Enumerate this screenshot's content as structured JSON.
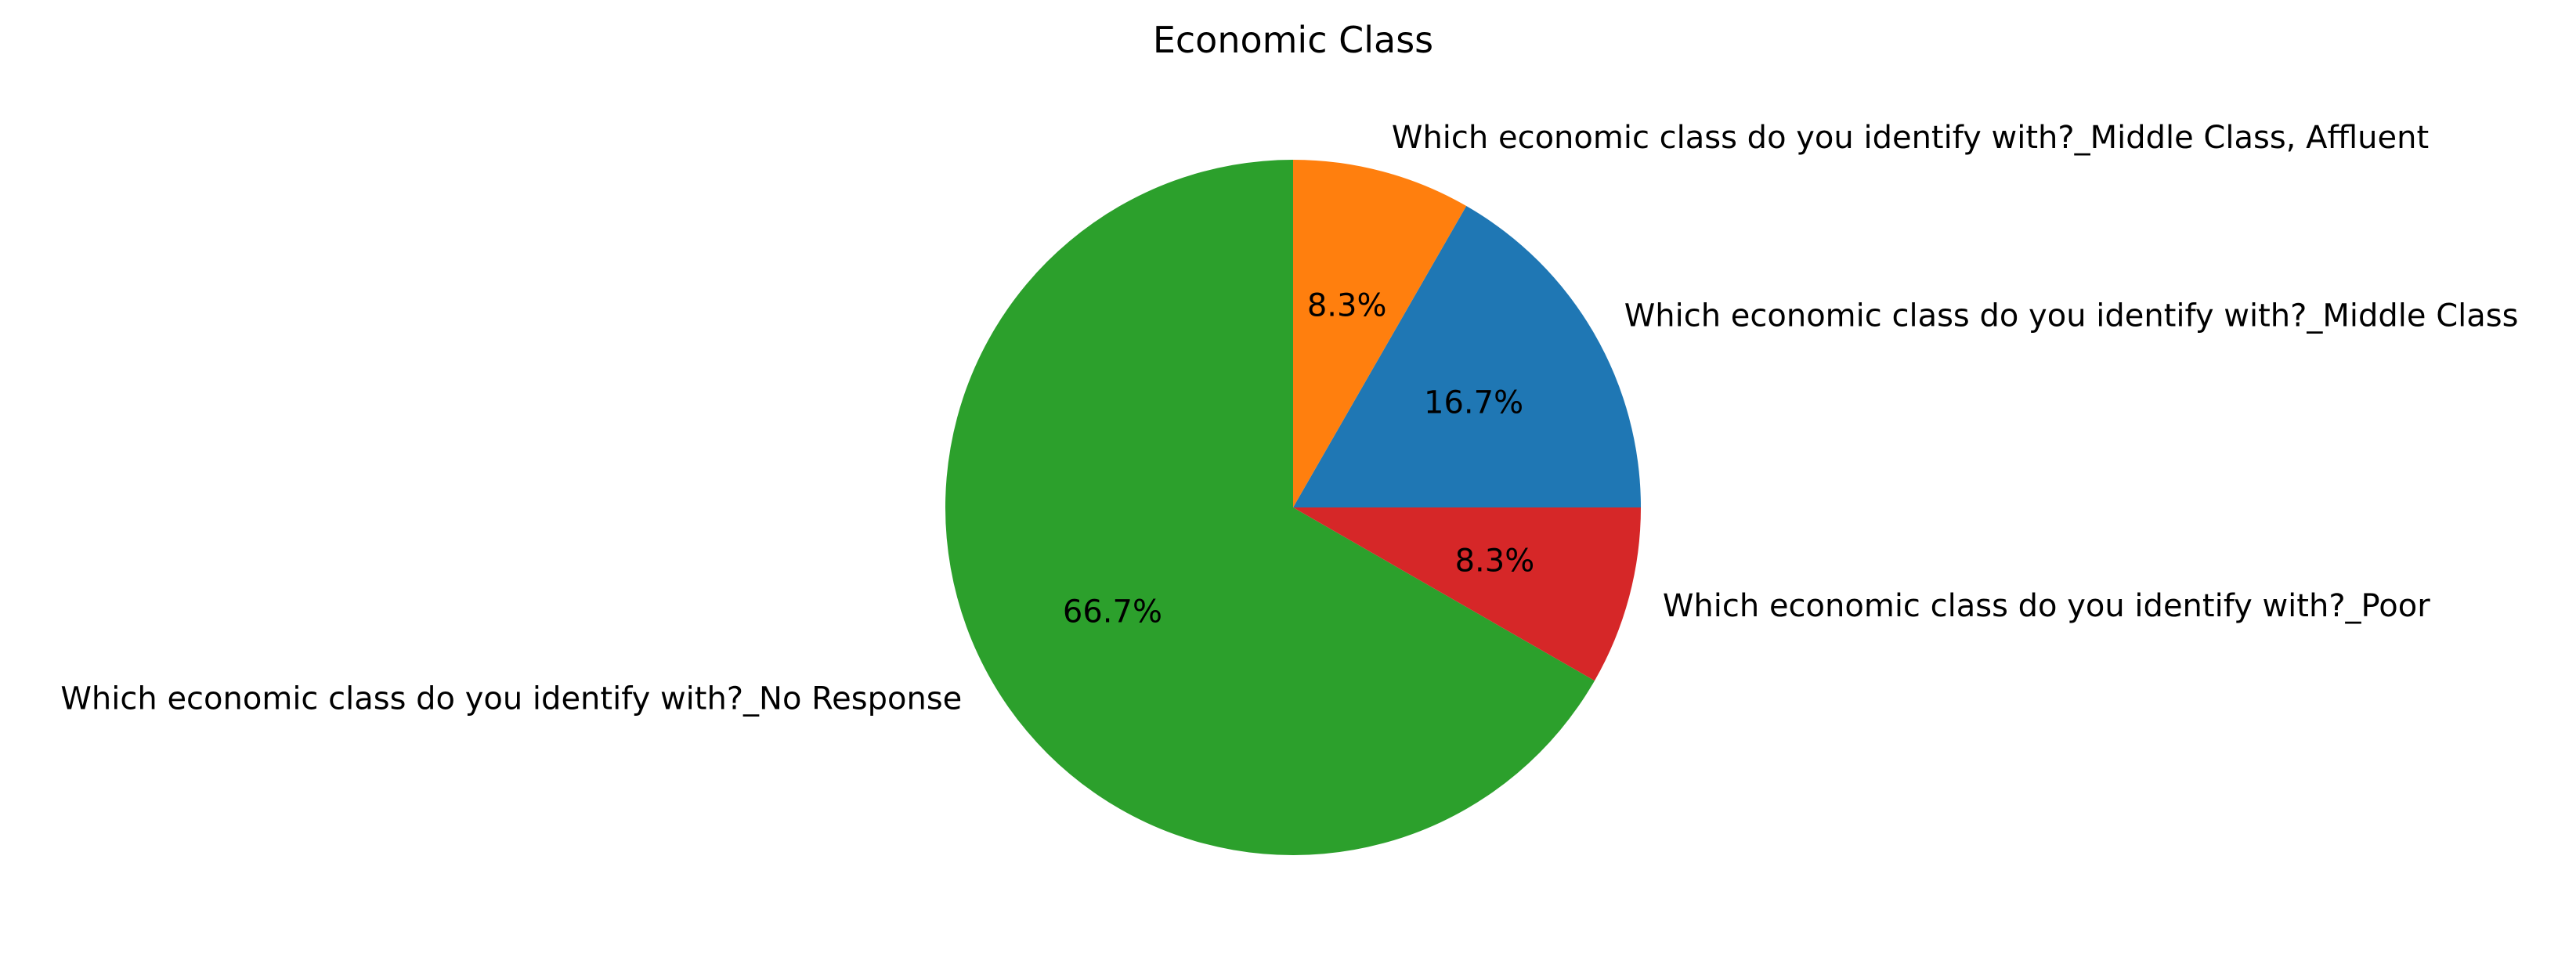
{
  "chart_data": {
    "type": "pie",
    "title": "Economic Class",
    "start_angle_deg": 0,
    "direction": "counterclockwise",
    "slices": [
      {
        "label": "Which economic class do you identify with?_Middle Class",
        "value": 16.7,
        "pct_label": "16.7%",
        "color": "#1f77b4"
      },
      {
        "label": "Which economic class do you identify with?_Middle Class, Affluent",
        "value": 8.3,
        "pct_label": "8.3%",
        "color": "#ff7f0e"
      },
      {
        "label": "Which economic class do you identify with?_No Response",
        "value": 66.7,
        "pct_label": "66.7%",
        "color": "#2ca02c"
      },
      {
        "label": "Which economic class do you identify with?_Poor",
        "value": 8.3,
        "pct_label": "8.3%",
        "color": "#d62728"
      }
    ]
  }
}
